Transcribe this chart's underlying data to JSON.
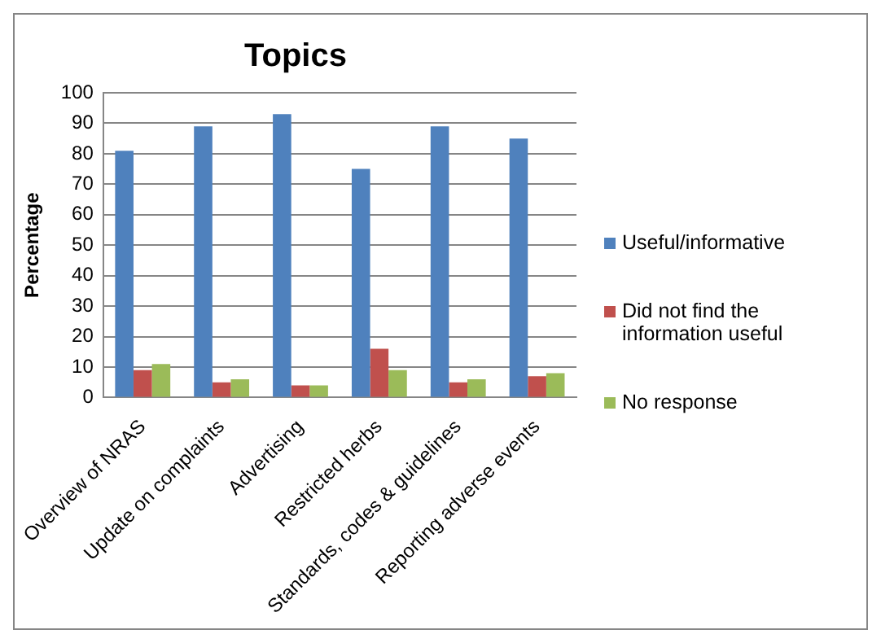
{
  "chart_data": {
    "type": "bar",
    "title": "Topics",
    "ylabel": "Percentage",
    "categories": [
      "Overview of NRAS",
      "Update on complaints",
      "Advertising",
      "Restricted herbs",
      "Standards, codes & guidelines",
      "Reporting adverse events"
    ],
    "series": [
      {
        "name": "Useful/informative",
        "color": "#4f81bd",
        "values": [
          81,
          89,
          93,
          75,
          89,
          85
        ]
      },
      {
        "name": "Did not find the information useful",
        "color": "#c0504d",
        "values": [
          9,
          5,
          4,
          16,
          5,
          7
        ]
      },
      {
        "name": "No response",
        "color": "#9bbb59",
        "values": [
          11,
          6,
          4,
          9,
          6,
          8
        ]
      }
    ],
    "ylim": [
      0,
      100
    ],
    "yticks": [
      0,
      10,
      20,
      30,
      40,
      50,
      60,
      70,
      80,
      90,
      100
    ],
    "grid": "y",
    "legend": "right"
  }
}
